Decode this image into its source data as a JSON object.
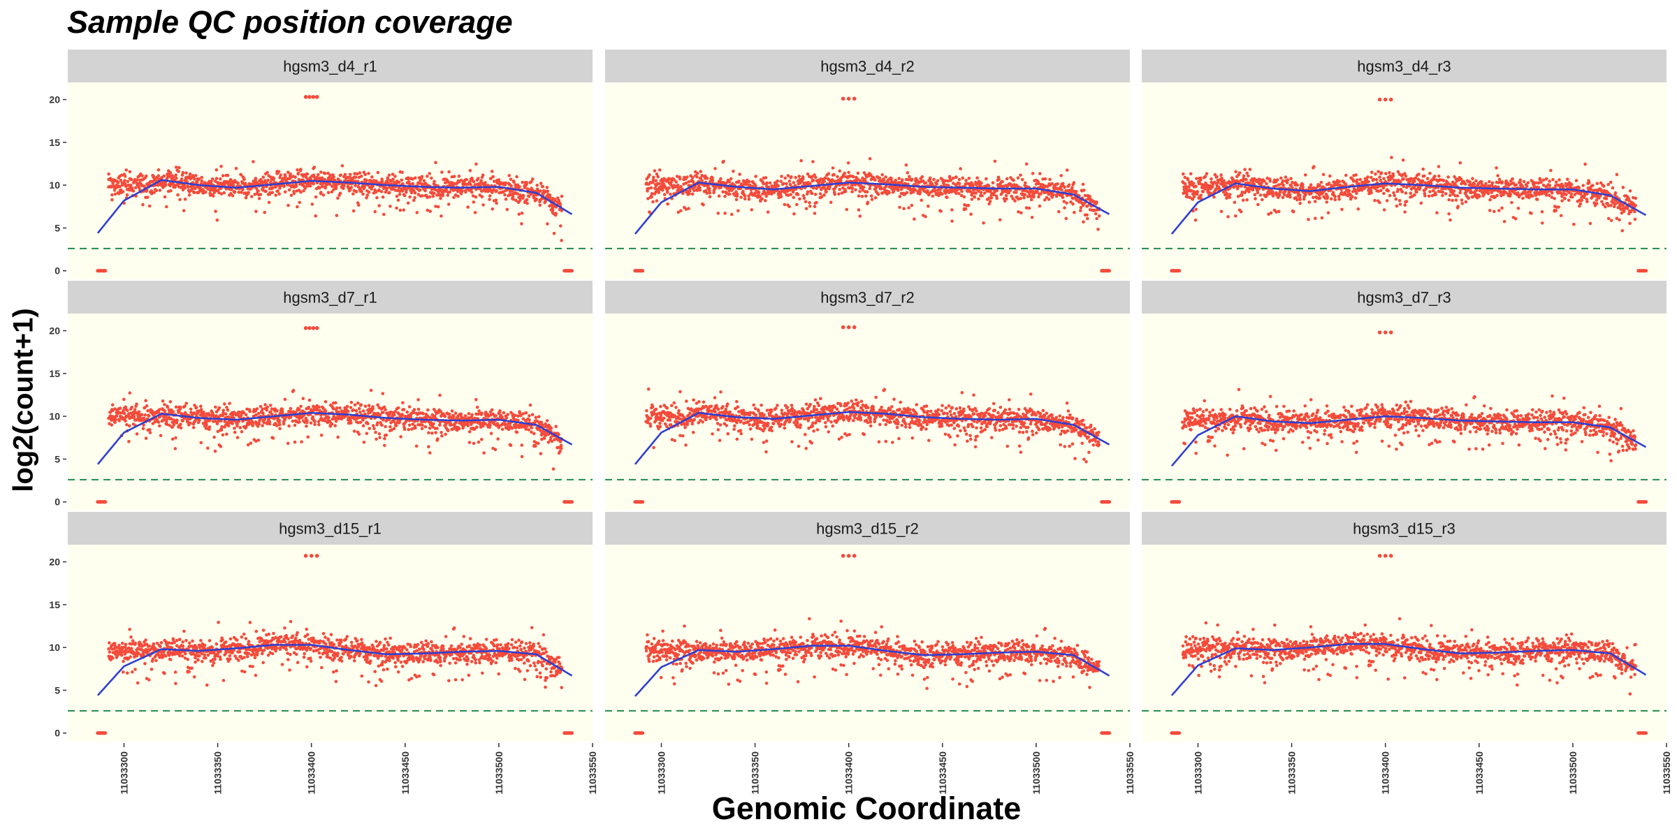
{
  "title": "Sample QC position coverage",
  "chart_data": {
    "type": "scatter",
    "xlabel": "Genomic Coordinate",
    "ylabel": "log2(count+1)",
    "x_ticks": [
      11033300,
      11033350,
      11033400,
      11033450,
      11033500,
      11033550
    ],
    "y_ticks": [
      0,
      5,
      10,
      15,
      20
    ],
    "xlim": [
      11033270,
      11033550
    ],
    "ylim": [
      -1,
      22
    ],
    "threshold_line": {
      "y": 2.6,
      "style": "dashed",
      "color": "#1f8a4c"
    },
    "point_color": "#f44b3b",
    "smooth_color": "#2f3fd0",
    "panel_background": "#fffff0",
    "strip_background": "#d3d3d3",
    "x_range_covered": [
      11033286,
      11033539
    ],
    "zero_clusters": [
      [
        11033286,
        11033290
      ],
      [
        11033535,
        11033539
      ]
    ],
    "panels": [
      {
        "name": "hgsm3_d4_r1",
        "level": 10.0,
        "outlier_x": [
          11033397,
          11033399,
          11033401,
          11033403
        ],
        "outlier_y": 20.3,
        "smooth": {
          "x": [
            11033286,
            11033300,
            11033320,
            11033340,
            11033360,
            11033380,
            11033400,
            11033420,
            11033440,
            11033460,
            11033480,
            11033500,
            11033520,
            11033539
          ],
          "y": [
            4.4,
            8.2,
            10.6,
            10.0,
            9.7,
            10.1,
            10.5,
            10.3,
            10.0,
            9.8,
            9.7,
            9.8,
            9.1,
            6.6
          ]
        }
      },
      {
        "name": "hgsm3_d4_r2",
        "level": 9.9,
        "outlier_x": [
          11033397,
          11033400,
          11033403
        ],
        "outlier_y": 20.1,
        "smooth": {
          "x": [
            11033286,
            11033300,
            11033320,
            11033340,
            11033360,
            11033380,
            11033400,
            11033420,
            11033440,
            11033460,
            11033480,
            11033500,
            11033520,
            11033539
          ],
          "y": [
            4.3,
            8.0,
            10.3,
            9.8,
            9.5,
            9.9,
            10.3,
            10.1,
            9.8,
            9.7,
            9.6,
            9.6,
            8.9,
            6.6
          ]
        }
      },
      {
        "name": "hgsm3_d4_r3",
        "level": 9.8,
        "outlier_x": [
          11033397,
          11033400,
          11033403
        ],
        "outlier_y": 20.0,
        "smooth": {
          "x": [
            11033286,
            11033300,
            11033320,
            11033340,
            11033360,
            11033380,
            11033400,
            11033420,
            11033440,
            11033460,
            11033480,
            11033500,
            11033520,
            11033539
          ],
          "y": [
            4.3,
            8.0,
            10.2,
            9.6,
            9.3,
            9.8,
            10.2,
            10.0,
            9.7,
            9.6,
            9.5,
            9.5,
            8.8,
            6.5
          ]
        }
      },
      {
        "name": "hgsm3_d7_r1",
        "level": 10.0,
        "outlier_x": [
          11033397,
          11033399,
          11033401,
          11033403
        ],
        "outlier_y": 20.3,
        "smooth": {
          "x": [
            11033286,
            11033300,
            11033320,
            11033340,
            11033360,
            11033380,
            11033400,
            11033420,
            11033440,
            11033460,
            11033480,
            11033500,
            11033520,
            11033539
          ],
          "y": [
            4.4,
            8.1,
            10.3,
            9.8,
            9.6,
            10.0,
            10.4,
            10.2,
            9.8,
            9.6,
            9.5,
            9.6,
            9.0,
            6.7
          ]
        }
      },
      {
        "name": "hgsm3_d7_r2",
        "level": 10.0,
        "outlier_x": [
          11033397,
          11033400,
          11033403
        ],
        "outlier_y": 20.4,
        "smooth": {
          "x": [
            11033286,
            11033300,
            11033320,
            11033340,
            11033360,
            11033380,
            11033400,
            11033420,
            11033440,
            11033460,
            11033480,
            11033500,
            11033520,
            11033539
          ],
          "y": [
            4.4,
            8.1,
            10.4,
            9.9,
            9.7,
            10.1,
            10.5,
            10.3,
            9.9,
            9.7,
            9.6,
            9.7,
            9.0,
            6.7
          ]
        }
      },
      {
        "name": "hgsm3_d7_r3",
        "level": 9.6,
        "outlier_x": [
          11033397,
          11033400,
          11033403
        ],
        "outlier_y": 19.8,
        "smooth": {
          "x": [
            11033286,
            11033300,
            11033320,
            11033340,
            11033360,
            11033380,
            11033400,
            11033420,
            11033440,
            11033460,
            11033480,
            11033500,
            11033520,
            11033539
          ],
          "y": [
            4.2,
            7.8,
            10.0,
            9.4,
            9.2,
            9.6,
            10.0,
            9.8,
            9.5,
            9.4,
            9.3,
            9.3,
            8.7,
            6.4
          ]
        }
      },
      {
        "name": "hgsm3_d15_r1",
        "level": 9.7,
        "outlier_x": [
          11033397,
          11033400,
          11033403
        ],
        "outlier_y": 20.7,
        "smooth": {
          "x": [
            11033286,
            11033300,
            11033320,
            11033340,
            11033360,
            11033380,
            11033400,
            11033420,
            11033440,
            11033460,
            11033480,
            11033500,
            11033520,
            11033539
          ],
          "y": [
            4.4,
            7.8,
            9.8,
            9.6,
            9.9,
            10.3,
            10.3,
            9.7,
            9.2,
            9.3,
            9.5,
            9.6,
            9.2,
            6.7
          ]
        }
      },
      {
        "name": "hgsm3_d15_r2",
        "level": 9.6,
        "outlier_x": [
          11033397,
          11033400,
          11033403
        ],
        "outlier_y": 20.7,
        "smooth": {
          "x": [
            11033286,
            11033300,
            11033320,
            11033340,
            11033360,
            11033380,
            11033400,
            11033420,
            11033440,
            11033460,
            11033480,
            11033500,
            11033520,
            11033539
          ],
          "y": [
            4.3,
            7.7,
            9.7,
            9.5,
            9.8,
            10.2,
            10.2,
            9.6,
            9.1,
            9.2,
            9.4,
            9.5,
            9.1,
            6.7
          ]
        }
      },
      {
        "name": "hgsm3_d15_r3",
        "level": 9.8,
        "outlier_x": [
          11033397,
          11033400,
          11033403
        ],
        "outlier_y": 20.7,
        "smooth": {
          "x": [
            11033286,
            11033300,
            11033320,
            11033340,
            11033360,
            11033380,
            11033400,
            11033420,
            11033440,
            11033460,
            11033480,
            11033500,
            11033520,
            11033539
          ],
          "y": [
            4.4,
            7.9,
            9.9,
            9.7,
            10.0,
            10.4,
            10.4,
            9.8,
            9.3,
            9.4,
            9.6,
            9.7,
            9.3,
            6.8
          ]
        }
      }
    ]
  }
}
